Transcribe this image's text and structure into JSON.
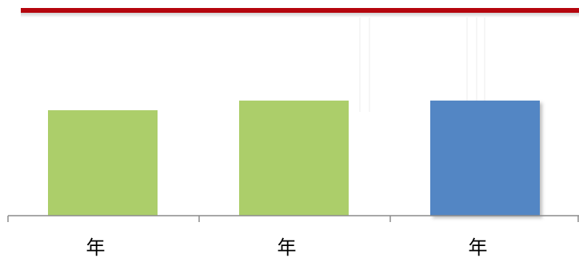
{
  "chart_data": {
    "type": "bar",
    "title": "",
    "xlabel": "",
    "ylabel": "",
    "categories": [
      "年",
      "年",
      "年"
    ],
    "values": [
      120,
      131,
      131
    ],
    "ylim": [
      0,
      200
    ],
    "grid": false,
    "bar_colors": [
      "#acce6a",
      "#acce6a",
      "#5386c4"
    ]
  },
  "colors": {
    "header_rule": "#b5060e",
    "axis": "#8c8c8c"
  }
}
